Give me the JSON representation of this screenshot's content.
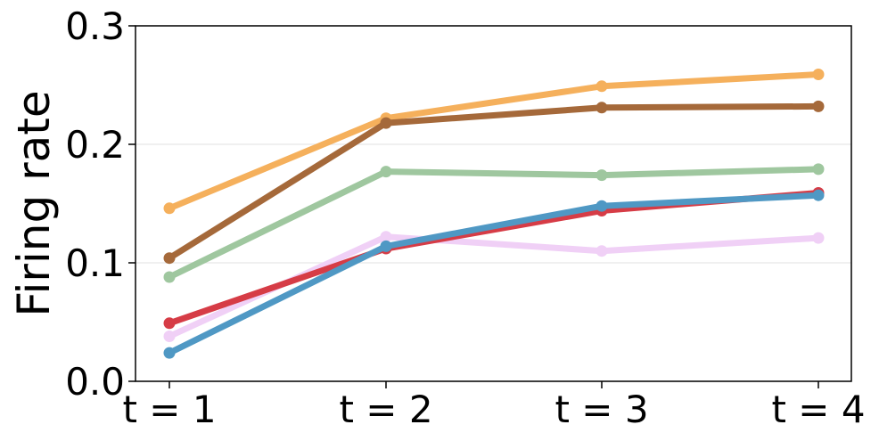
{
  "chart_data": {
    "type": "line",
    "title": "",
    "xlabel": "",
    "ylabel": "Firing rate",
    "categories": [
      "t = 1",
      "t = 2",
      "t = 3",
      "t = 4"
    ],
    "ylim": [
      0.0,
      0.3
    ],
    "yticks": [
      "0.0",
      "0.1",
      "0.2",
      "0.3"
    ],
    "grid": "horizontal",
    "legend": "none",
    "series": [
      {
        "color": "#f5b05c",
        "values": [
          0.146,
          0.222,
          0.249,
          0.259
        ]
      },
      {
        "color": "#a5693a",
        "values": [
          0.104,
          0.218,
          0.231,
          0.232
        ]
      },
      {
        "color": "#9fc79f",
        "values": [
          0.088,
          0.177,
          0.174,
          0.179
        ]
      },
      {
        "color": "#f0d0f6",
        "values": [
          0.038,
          0.122,
          0.11,
          0.121
        ]
      },
      {
        "color": "#d63c46",
        "values": [
          0.049,
          0.112,
          0.144,
          0.159
        ]
      },
      {
        "color": "#4f98c4",
        "values": [
          0.024,
          0.114,
          0.148,
          0.157
        ]
      }
    ]
  }
}
